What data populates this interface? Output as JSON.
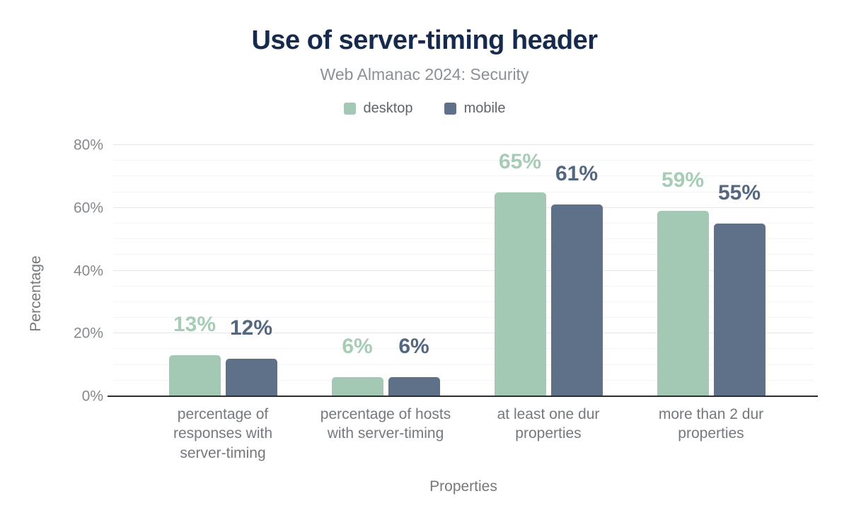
{
  "header": {
    "title": "Use of server-timing header",
    "subtitle": "Web Almanac 2024: Security"
  },
  "chart_data": {
    "type": "bar",
    "title": "Use of server-timing header",
    "subtitle": "Web Almanac 2024: Security",
    "categories": [
      "percentage of responses with server-timing",
      "percentage of hosts with server-timing",
      "at least one dur properties",
      "more than 2 dur properties"
    ],
    "series": [
      {
        "name": "desktop",
        "color": "#a3c9b4",
        "label_color": "#a6ccb6",
        "values": [
          13,
          6,
          65,
          59
        ],
        "value_labels": [
          "13%",
          "6%",
          "65%",
          "59%"
        ]
      },
      {
        "name": "mobile",
        "color": "#5f7189",
        "label_color": "#536780",
        "values": [
          12,
          6,
          61,
          55
        ],
        "value_labels": [
          "12%",
          "6%",
          "61%",
          "55%"
        ]
      }
    ],
    "xlabel": "Properties",
    "ylabel": "Percentage",
    "ylim": [
      0,
      80
    ],
    "ytick_step": 20,
    "yminor_step": 5,
    "yticks": [
      "0%",
      "20%",
      "40%",
      "60%",
      "80%"
    ],
    "grid": true,
    "legend_position": "top"
  },
  "colors": {
    "title_text": "#152a4c",
    "subtitle_text": "#8b9097",
    "legend_text": "#61656a",
    "tick_text": "#85898e",
    "axis_text": "#75797e",
    "grid_major": "#e6e7e9",
    "grid_minor": "#f2f3f4",
    "baseline": "#2e2e2e"
  }
}
